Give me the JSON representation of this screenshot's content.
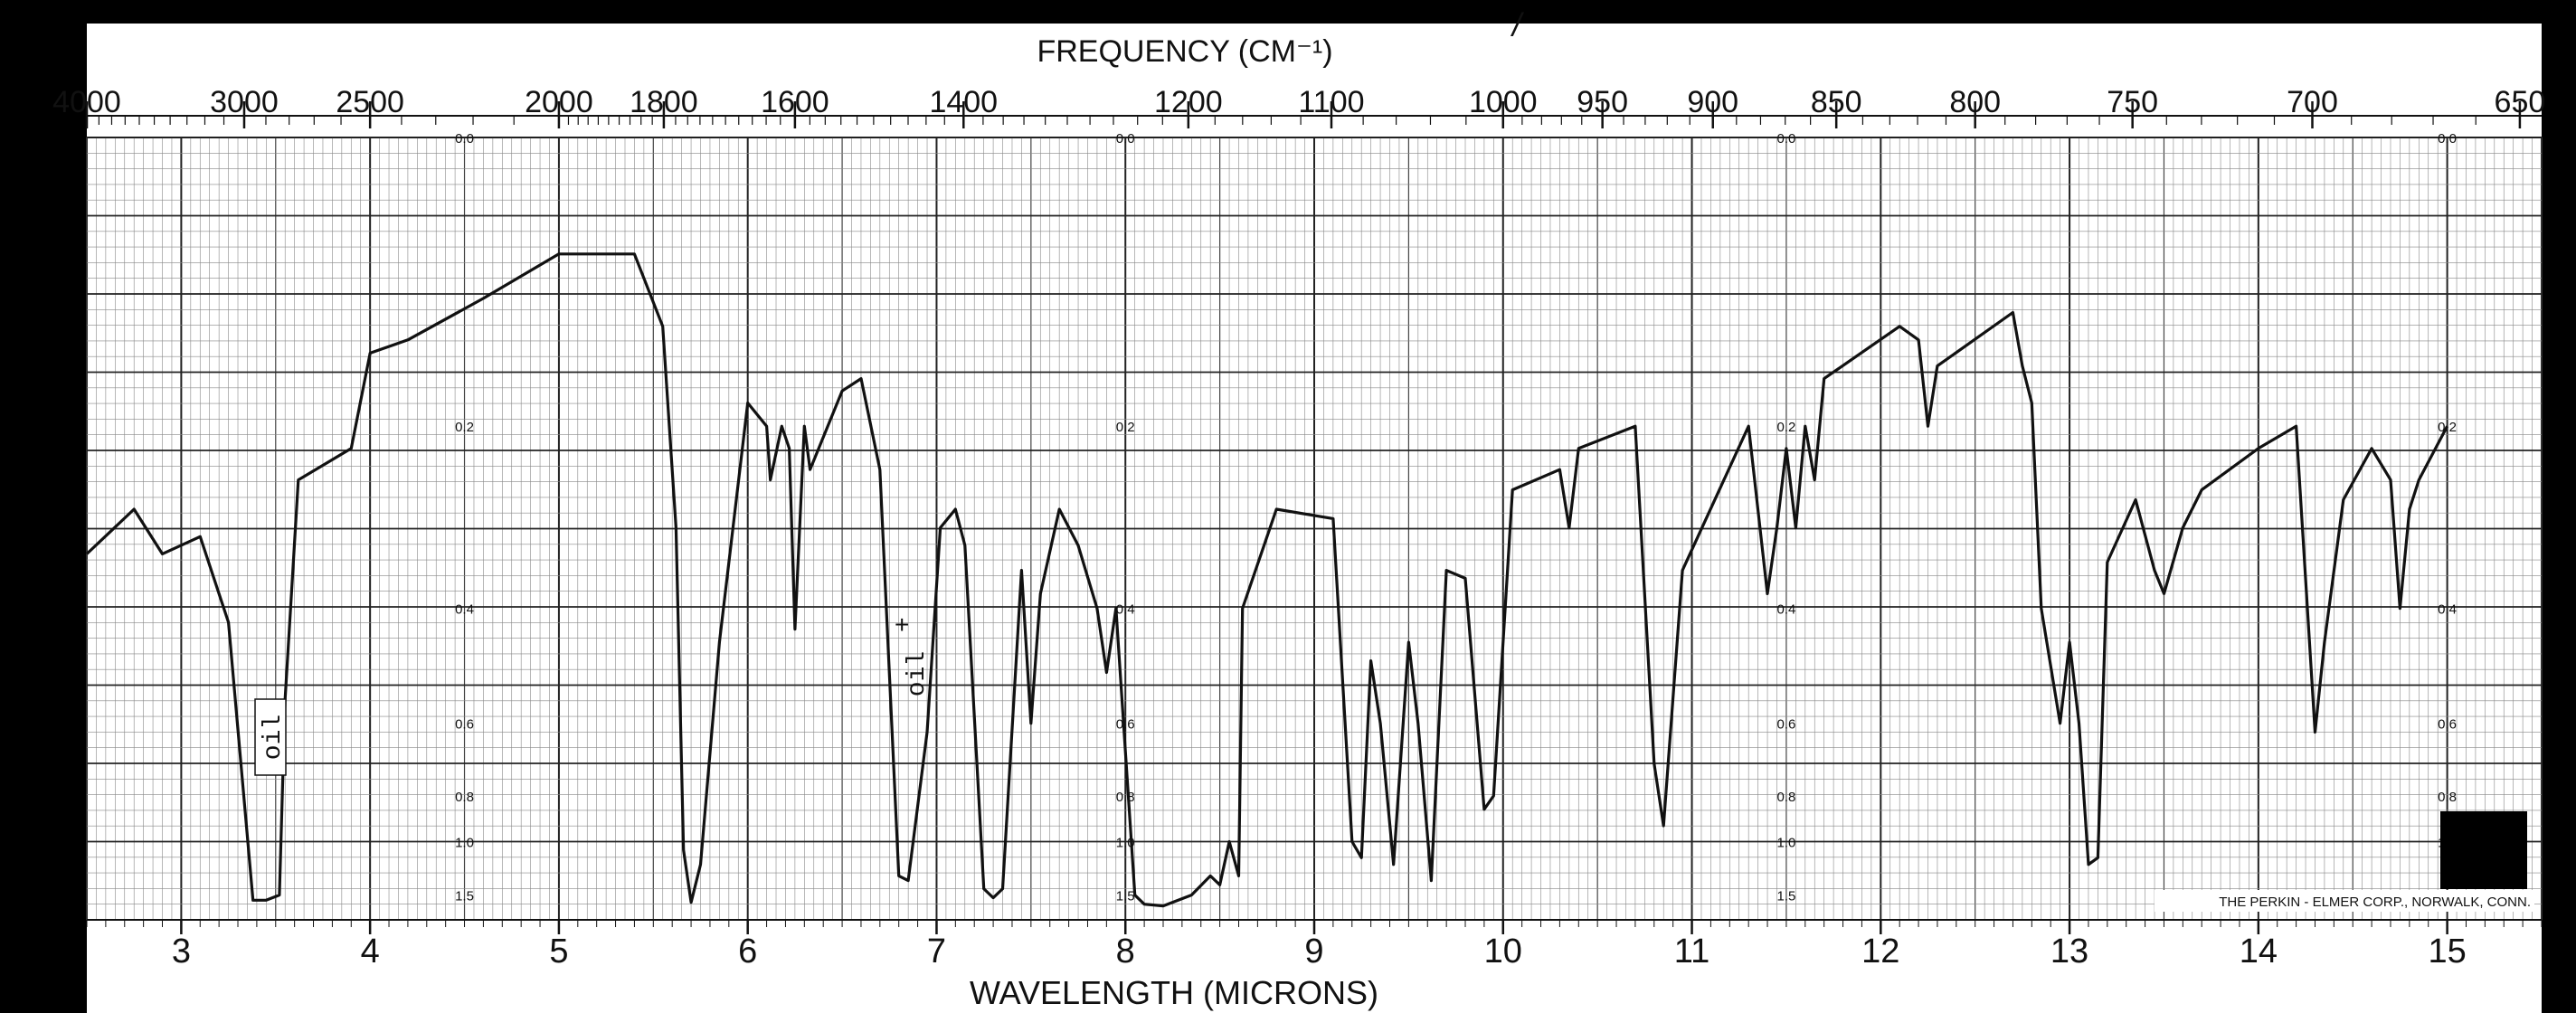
{
  "chart_data": {
    "type": "line",
    "title": "",
    "top_axis_label": "FREQUENCY (CM⁻¹)",
    "xlabel": "WAVELENGTH (MICRONS)",
    "ylabel": "",
    "xlim": [
      2.5,
      15.5
    ],
    "ylim_absorbance": [
      0.0,
      1.6
    ],
    "top_ticks": [
      "4000",
      "3000",
      "2500",
      "2000",
      "1800",
      "1600",
      "1400",
      "1200",
      "1100",
      "1000",
      "950",
      "900",
      "850",
      "800",
      "750",
      "700",
      "650"
    ],
    "bottom_ticks": [
      "3",
      "4",
      "5",
      "6",
      "7",
      "8",
      "9",
      "10",
      "11",
      "12",
      "13",
      "14",
      "15"
    ],
    "absorbance_scale_labels": [
      "0.0",
      "0.2",
      "0.4",
      "0.6",
      "0.8",
      "1.0",
      "1.5"
    ],
    "annotations": [
      "oil",
      "oil"
    ],
    "stray_mark": "/",
    "credit": "THE PERKIN - ELMER CORP., NORWALK, CONN.",
    "grid": true,
    "series": [
      {
        "x_microns": [
          2.5,
          2.75,
          2.9,
          3.1,
          3.25,
          3.38,
          3.4,
          3.45,
          3.52,
          3.55,
          3.62,
          3.9,
          4.0,
          4.2,
          4.6,
          5.0,
          5.4,
          5.55,
          5.62,
          5.66,
          5.7,
          5.75,
          5.85,
          6.0,
          6.1,
          6.12,
          6.18,
          6.22,
          6.25,
          6.3,
          6.33,
          6.5,
          6.6,
          6.7,
          6.8,
          6.85,
          6.95,
          7.02,
          7.1,
          7.15,
          7.25,
          7.3,
          7.35,
          7.45,
          7.5,
          7.55,
          7.65,
          7.75,
          7.85,
          7.9,
          7.95,
          8.05,
          8.1,
          8.2,
          8.35,
          8.45,
          8.5,
          8.55,
          8.6,
          8.62,
          8.8,
          9.1,
          9.2,
          9.25,
          9.3,
          9.35,
          9.42,
          9.5,
          9.55,
          9.62,
          9.7,
          9.8,
          9.9,
          9.95,
          10.05,
          10.3,
          10.35,
          10.4,
          10.7,
          10.8,
          10.85,
          10.95,
          11.3,
          11.4,
          11.45,
          11.5,
          11.55,
          11.6,
          11.65,
          11.7,
          12.1,
          12.2,
          12.25,
          12.3,
          12.7,
          12.75,
          12.8,
          12.85,
          12.95,
          13.0,
          13.05,
          13.1,
          13.15,
          13.2,
          13.35,
          13.45,
          13.5,
          13.6,
          13.7,
          14.0,
          14.2,
          14.3,
          14.35,
          14.45,
          14.6,
          14.7,
          14.75,
          14.8,
          14.85,
          15.0
        ],
        "absorbance": [
          0.33,
          0.28,
          0.33,
          0.31,
          0.42,
          1.6,
          1.6,
          1.6,
          1.5,
          0.55,
          0.25,
          0.22,
          0.14,
          0.13,
          0.1,
          0.07,
          0.07,
          0.12,
          0.3,
          1.05,
          1.65,
          1.15,
          0.45,
          0.18,
          0.2,
          0.25,
          0.2,
          0.22,
          0.43,
          0.2,
          0.24,
          0.17,
          0.16,
          0.24,
          1.25,
          1.3,
          0.62,
          0.3,
          0.28,
          0.32,
          1.4,
          1.55,
          1.4,
          0.35,
          0.6,
          0.38,
          0.28,
          0.32,
          0.4,
          0.5,
          0.4,
          1.5,
          1.7,
          1.75,
          1.5,
          1.25,
          1.35,
          1.0,
          1.25,
          0.4,
          0.28,
          0.29,
          1.0,
          1.1,
          0.48,
          0.6,
          1.15,
          0.45,
          0.6,
          1.3,
          0.35,
          0.36,
          0.85,
          0.8,
          0.26,
          0.24,
          0.3,
          0.22,
          0.2,
          0.7,
          0.92,
          0.35,
          0.2,
          0.38,
          0.3,
          0.22,
          0.3,
          0.2,
          0.25,
          0.16,
          0.12,
          0.13,
          0.2,
          0.15,
          0.11,
          0.15,
          0.18,
          0.4,
          0.6,
          0.45,
          0.6,
          1.15,
          1.1,
          0.34,
          0.27,
          0.35,
          0.38,
          0.3,
          0.26,
          0.22,
          0.2,
          0.62,
          0.45,
          0.27,
          0.22,
          0.25,
          0.4,
          0.28,
          0.25,
          0.2
        ]
      }
    ]
  }
}
